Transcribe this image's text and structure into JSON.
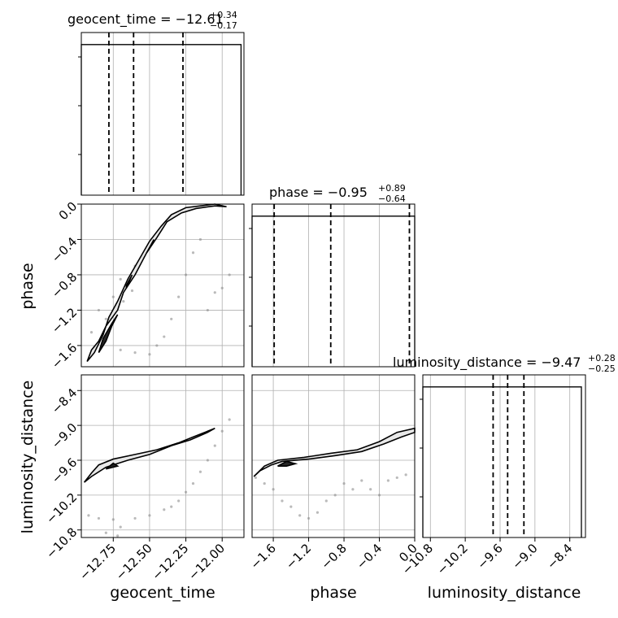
{
  "chart_data": {
    "type": "corner",
    "parameters": [
      "geocent_time",
      "phase",
      "luminosity_distance"
    ],
    "grid": true,
    "titles": [
      {
        "param": "geocent_time",
        "main": "geocent_time = −12.61",
        "sup": "+0.34",
        "sub": "−0.17"
      },
      {
        "param": "phase",
        "main": "phase = −0.95",
        "sup": "+0.89",
        "sub": "−0.64"
      },
      {
        "param": "luminosity_distance",
        "main": "luminosity_distance = −9.47",
        "sup": "+0.28",
        "sub": "−0.25"
      }
    ],
    "axes": {
      "geocent_time": {
        "range": [
          -12.97,
          -11.85
        ],
        "ticks": [
          -12.75,
          -12.5,
          -12.25,
          -12.0
        ],
        "tick_labels": [
          "−12.75",
          "−12.50",
          "−12.25",
          "−12.00"
        ],
        "label": "geocent_time"
      },
      "phase": {
        "range": [
          -1.84,
          0.0
        ],
        "ticks": [
          -1.6,
          -1.2,
          -0.8,
          -0.4,
          0.0
        ],
        "tick_labels": [
          "−1.6",
          "−1.2",
          "−0.8",
          "−0.4",
          "0.0"
        ],
        "label": "phase"
      },
      "luminosity_distance": {
        "range": [
          -10.93,
          -8.13
        ],
        "ticks": [
          -10.8,
          -10.2,
          -9.6,
          -9.0,
          -8.4
        ],
        "tick_labels": [
          "−10.8",
          "−10.2",
          "−9.6",
          "−9.0",
          "−8.4"
        ],
        "label": "luminosity_distance"
      }
    },
    "histograms": [
      {
        "param": "geocent_time",
        "edges": [
          -12.97,
          -12.92,
          -12.87,
          -12.82,
          -12.77,
          -12.72,
          -12.67,
          -12.62,
          -12.57,
          -12.52,
          -12.47,
          -12.42,
          -12.37,
          -12.32,
          -12.27,
          -12.22,
          -12.17,
          -12.12,
          -12.07,
          -12.02,
          -11.97,
          -11.92,
          -11.87
        ],
        "counts": [
          4,
          4,
          4,
          4,
          4,
          4,
          4,
          4,
          4,
          4,
          4,
          4,
          4,
          4,
          4,
          4,
          4,
          4,
          4,
          4,
          4,
          4
        ],
        "quantiles": [
          -12.78,
          -12.61,
          -12.27
        ]
      },
      {
        "param": "phase",
        "edges": [
          -1.84,
          -1.76,
          -1.68,
          -1.6,
          -1.52,
          -1.44,
          -1.36,
          -1.28,
          -1.2,
          -1.12,
          -1.04,
          -0.96,
          -0.88,
          -0.8,
          -0.72,
          -0.64,
          -0.56,
          -0.48,
          -0.4,
          -0.32,
          -0.24,
          -0.16,
          -0.08,
          0.0
        ],
        "counts": [
          4,
          4,
          4,
          4,
          4,
          4,
          4,
          4,
          4,
          4,
          4,
          4,
          4,
          4,
          4,
          4,
          4,
          4,
          4,
          4,
          4,
          4,
          4
        ],
        "quantiles": [
          -1.59,
          -0.95,
          -0.06
        ]
      },
      {
        "param": "luminosity_distance",
        "edges": [
          -10.93,
          -10.8,
          -10.67,
          -10.54,
          -10.41,
          -10.28,
          -10.15,
          -10.02,
          -9.89,
          -9.76,
          -9.63,
          -9.5,
          -9.37,
          -9.24,
          -9.11,
          -8.98,
          -8.85,
          -8.72,
          -8.59,
          -8.46,
          -8.33,
          -8.2
        ],
        "counts": [
          4,
          4,
          4,
          4,
          4,
          4,
          4,
          4,
          4,
          4,
          4,
          4,
          4,
          4,
          4,
          4,
          4,
          4,
          4,
          4,
          4
        ],
        "quantiles": [
          -9.72,
          -9.47,
          -9.19
        ]
      }
    ],
    "pair_panels": [
      {
        "x": "geocent_time",
        "y": "phase",
        "scatter": [
          [
            -12.75,
            -1.05
          ],
          [
            -12.68,
            -1.1
          ],
          [
            -12.62,
            -0.98
          ],
          [
            -12.85,
            -1.2
          ],
          [
            -12.9,
            -1.45
          ],
          [
            -12.8,
            -1.3
          ],
          [
            -12.7,
            -0.85
          ],
          [
            -12.6,
            -0.7
          ],
          [
            -12.55,
            -0.6
          ],
          [
            -12.82,
            -1.55
          ],
          [
            -12.88,
            -1.62
          ],
          [
            -12.4,
            -1.5
          ],
          [
            -12.35,
            -1.3
          ],
          [
            -12.3,
            -1.05
          ],
          [
            -12.25,
            -0.8
          ],
          [
            -12.2,
            -0.55
          ],
          [
            -12.15,
            -0.4
          ],
          [
            -12.05,
            -1.0
          ],
          [
            -12.1,
            -1.2
          ],
          [
            -12.0,
            -0.95
          ],
          [
            -11.95,
            -0.8
          ],
          [
            -12.45,
            -1.6
          ],
          [
            -12.5,
            -1.7
          ],
          [
            -12.7,
            -1.65
          ],
          [
            -12.6,
            -1.68
          ]
        ],
        "contours": [
          [
            [
              -12.93,
              -1.78
            ],
            [
              -12.9,
              -1.65
            ],
            [
              -12.85,
              -1.55
            ],
            [
              -12.8,
              -1.38
            ],
            [
              -12.72,
              -1.2
            ],
            [
              -12.68,
              -1.0
            ],
            [
              -12.6,
              -0.8
            ],
            [
              -12.52,
              -0.55
            ],
            [
              -12.45,
              -0.38
            ],
            [
              -12.38,
              -0.2
            ],
            [
              -12.28,
              -0.1
            ],
            [
              -12.18,
              -0.05
            ],
            [
              -12.05,
              -0.02
            ],
            [
              -11.97,
              -0.03
            ],
            [
              -12.05,
              0.0
            ],
            [
              -12.15,
              -0.02
            ],
            [
              -12.25,
              -0.04
            ],
            [
              -12.35,
              -0.12
            ],
            [
              -12.42,
              -0.25
            ],
            [
              -12.5,
              -0.42
            ],
            [
              -12.58,
              -0.65
            ],
            [
              -12.65,
              -0.85
            ],
            [
              -12.72,
              -1.1
            ],
            [
              -12.78,
              -1.28
            ],
            [
              -12.82,
              -1.48
            ],
            [
              -12.88,
              -1.68
            ],
            [
              -12.93,
              -1.78
            ]
          ],
          [
            [
              -12.85,
              -1.68
            ],
            [
              -12.82,
              -1.52
            ],
            [
              -12.76,
              -1.35
            ],
            [
              -12.72,
              -1.25
            ],
            [
              -12.76,
              -1.38
            ],
            [
              -12.8,
              -1.55
            ],
            [
              -12.85,
              -1.68
            ]
          ],
          [
            [
              -12.66,
              -0.95
            ],
            [
              -12.62,
              -0.8
            ],
            [
              -12.66,
              -0.92
            ],
            [
              -12.66,
              -0.95
            ]
          ],
          [
            [
              -12.52,
              -0.55
            ],
            [
              -12.47,
              -0.4
            ],
            [
              -12.5,
              -0.5
            ],
            [
              -12.52,
              -0.55
            ]
          ]
        ]
      },
      {
        "x": "geocent_time",
        "y": "luminosity_distance",
        "scatter": [
          [
            -12.92,
            -10.55
          ],
          [
            -12.85,
            -10.6
          ],
          [
            -12.75,
            -10.62
          ],
          [
            -12.6,
            -10.6
          ],
          [
            -12.5,
            -10.55
          ],
          [
            -12.4,
            -10.45
          ],
          [
            -12.35,
            -10.4
          ],
          [
            -12.3,
            -10.3
          ],
          [
            -12.25,
            -10.15
          ],
          [
            -12.2,
            -10.0
          ],
          [
            -12.15,
            -9.8
          ],
          [
            -12.1,
            -9.6
          ],
          [
            -12.05,
            -9.35
          ],
          [
            -12.0,
            -9.1
          ],
          [
            -11.95,
            -8.9
          ],
          [
            -12.7,
            -10.75
          ],
          [
            -12.8,
            -10.85
          ],
          [
            -12.72,
            -10.9
          ]
        ],
        "contours": [
          [
            [
              -12.95,
              -9.98
            ],
            [
              -12.9,
              -9.82
            ],
            [
              -12.85,
              -9.68
            ],
            [
              -12.75,
              -9.58
            ],
            [
              -12.6,
              -9.5
            ],
            [
              -12.45,
              -9.42
            ],
            [
              -12.3,
              -9.3
            ],
            [
              -12.2,
              -9.2
            ],
            [
              -12.1,
              -9.1
            ],
            [
              -12.05,
              -9.05
            ],
            [
              -12.1,
              -9.12
            ],
            [
              -12.22,
              -9.25
            ],
            [
              -12.35,
              -9.35
            ],
            [
              -12.5,
              -9.5
            ],
            [
              -12.65,
              -9.6
            ],
            [
              -12.8,
              -9.72
            ],
            [
              -12.9,
              -9.88
            ],
            [
              -12.95,
              -9.98
            ]
          ],
          [
            [
              -12.8,
              -9.75
            ],
            [
              -12.75,
              -9.65
            ],
            [
              -12.72,
              -9.7
            ],
            [
              -12.8,
              -9.75
            ]
          ]
        ]
      },
      {
        "x": "phase",
        "y": "luminosity_distance",
        "scatter": [
          [
            -1.8,
            -9.9
          ],
          [
            -1.7,
            -10.0
          ],
          [
            -1.6,
            -10.1
          ],
          [
            -1.5,
            -10.3
          ],
          [
            -1.4,
            -10.4
          ],
          [
            -1.3,
            -10.55
          ],
          [
            -1.2,
            -10.6
          ],
          [
            -1.1,
            -10.5
          ],
          [
            -1.0,
            -10.3
          ],
          [
            -0.9,
            -10.2
          ],
          [
            -0.8,
            -10.0
          ],
          [
            -0.7,
            -10.1
          ],
          [
            -0.6,
            -9.95
          ],
          [
            -0.5,
            -10.1
          ],
          [
            -0.4,
            -10.2
          ],
          [
            -0.3,
            -9.95
          ],
          [
            -0.2,
            -9.9
          ],
          [
            -0.1,
            -9.85
          ]
        ],
        "contours": [
          [
            [
              -1.82,
              -9.88
            ],
            [
              -1.75,
              -9.78
            ],
            [
              -1.62,
              -9.68
            ],
            [
              -1.5,
              -9.62
            ],
            [
              -1.2,
              -9.58
            ],
            [
              -0.9,
              -9.52
            ],
            [
              -0.6,
              -9.45
            ],
            [
              -0.35,
              -9.32
            ],
            [
              -0.15,
              -9.2
            ],
            [
              0.0,
              -9.12
            ],
            [
              0.0,
              -9.05
            ],
            [
              -0.2,
              -9.12
            ],
            [
              -0.4,
              -9.28
            ],
            [
              -0.65,
              -9.42
            ],
            [
              -0.95,
              -9.48
            ],
            [
              -1.25,
              -9.55
            ],
            [
              -1.55,
              -9.6
            ],
            [
              -1.7,
              -9.7
            ],
            [
              -1.82,
              -9.88
            ]
          ],
          [
            [
              -1.55,
              -9.7
            ],
            [
              -1.45,
              -9.62
            ],
            [
              -1.35,
              -9.66
            ],
            [
              -1.45,
              -9.7
            ],
            [
              -1.55,
              -9.7
            ]
          ]
        ]
      }
    ]
  }
}
